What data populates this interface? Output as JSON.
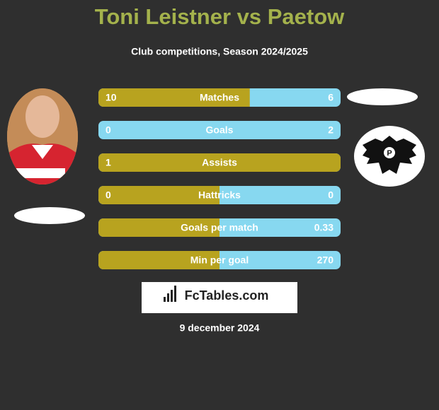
{
  "header": {
    "title": "Toni Leistner vs Paetow",
    "subtitle": "Club competitions, Season 2024/2025"
  },
  "rows": [
    {
      "label": "Matches",
      "left": 10,
      "right": 6
    },
    {
      "label": "Goals",
      "left": 0,
      "right": 2
    },
    {
      "label": "Assists",
      "left": 1
    },
    {
      "label": "Hattricks",
      "left": 0,
      "right": 0
    },
    {
      "label": "Goals per match",
      "right": 0.33
    },
    {
      "label": "Min per goal",
      "right": 270
    }
  ],
  "footer": {
    "logo": "FcTables.com",
    "date": "9 december 2024"
  }
}
